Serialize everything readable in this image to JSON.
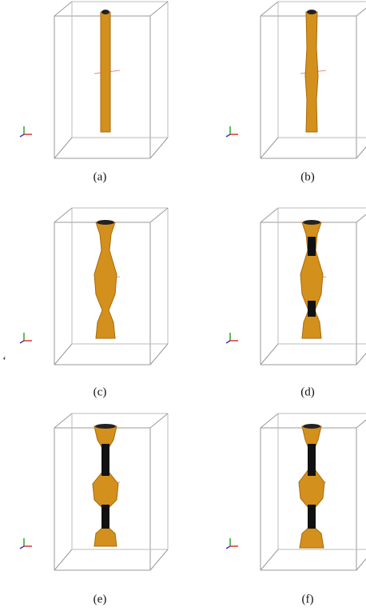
{
  "panels": [
    {
      "label": "(a)"
    },
    {
      "label": "(b)"
    },
    {
      "label": "(c)"
    },
    {
      "label": "(d)"
    },
    {
      "label": "(e)"
    },
    {
      "label": "(f)"
    }
  ],
  "stray_mark": "‘"
}
